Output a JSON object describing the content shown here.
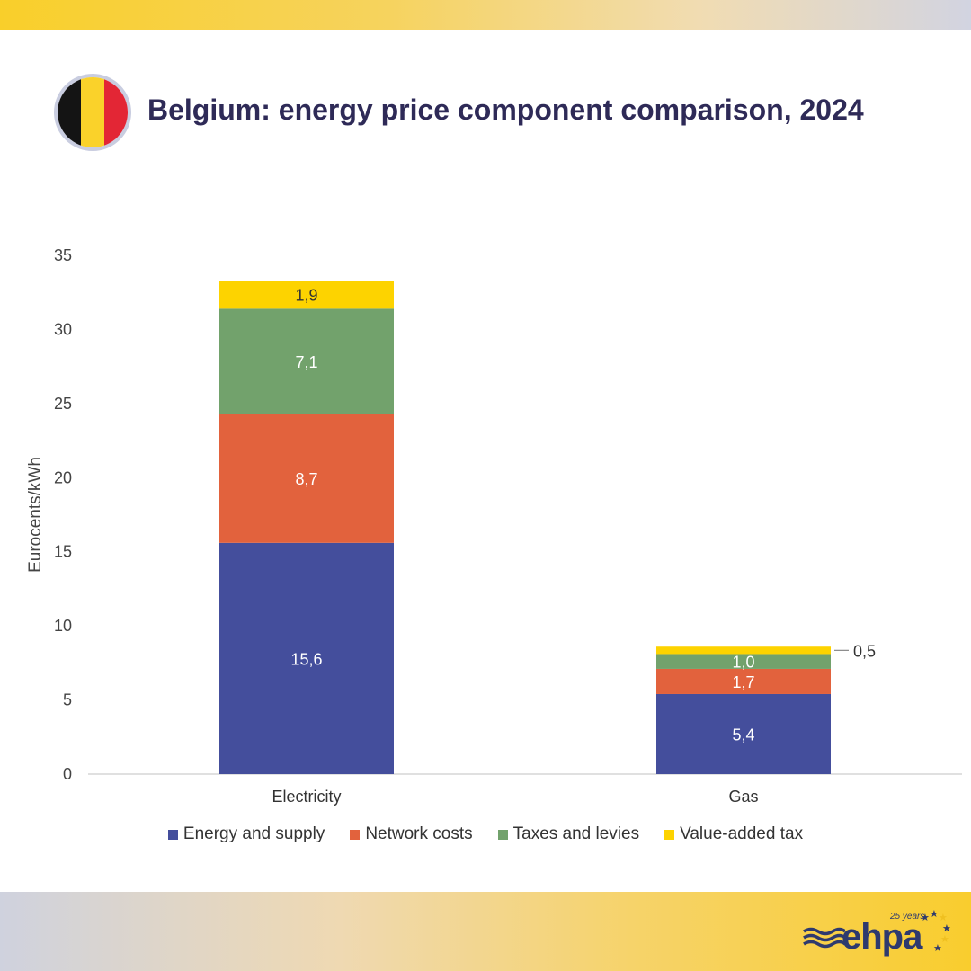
{
  "page": {
    "title": "Belgium: energy price component comparison, 2024",
    "flag_icon": "belgium-flag-icon",
    "flag_colors": [
      "#141414",
      "#fad22a",
      "#e32635"
    ]
  },
  "chart_data": {
    "type": "bar",
    "stacked": true,
    "categories": [
      "Electricity",
      "Gas"
    ],
    "series": [
      {
        "name": "Energy and supply",
        "color": "#444e9c",
        "values": [
          15.6,
          5.4
        ],
        "labels": [
          "15,6",
          "5,4"
        ],
        "label_color": "#ffffff"
      },
      {
        "name": "Network costs",
        "color": "#e2623d",
        "values": [
          8.7,
          1.7
        ],
        "labels": [
          "8,7",
          "1,7"
        ],
        "label_color": "#ffffff"
      },
      {
        "name": "Taxes and levies",
        "color": "#72a26c",
        "values": [
          7.1,
          1.0
        ],
        "labels": [
          "7,1",
          "1,0"
        ],
        "label_color": "#ffffff"
      },
      {
        "name": "Value-added tax",
        "color": "#fdd300",
        "values": [
          1.9,
          0.5
        ],
        "labels": [
          "1,9",
          "0,5"
        ],
        "label_color": "#333333"
      }
    ],
    "ylabel": "Eurocents/kWh",
    "xlabel": "",
    "ylim": [
      0,
      35
    ],
    "yticks": [
      "0",
      "5",
      "10",
      "15",
      "20",
      "25",
      "30",
      "35"
    ],
    "ytick_values": [
      0,
      5,
      10,
      15,
      20,
      25,
      30,
      35
    ],
    "grid": false,
    "legend": "bottom"
  },
  "legend": {
    "items": [
      {
        "label": "Energy and supply",
        "color": "#444e9c"
      },
      {
        "label": "Network costs",
        "color": "#e2623d"
      },
      {
        "label": "Taxes and levies",
        "color": "#72a26c"
      },
      {
        "label": "Value-added tax",
        "color": "#fdd300"
      }
    ]
  },
  "logo": {
    "brand": "ehpa",
    "years": "25 years",
    "icon": "ehpa-logo-icon",
    "color": "#2e3a6e",
    "accent": "#f0c020"
  }
}
